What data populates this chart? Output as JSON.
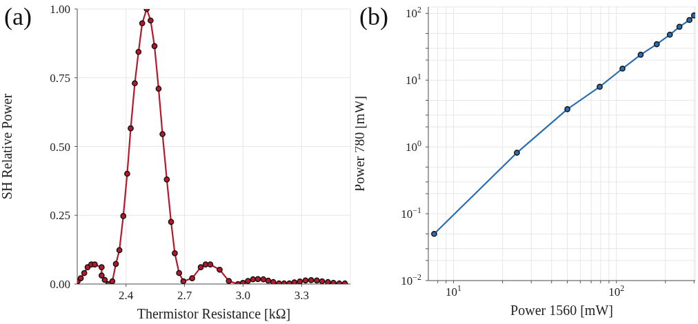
{
  "chart_data": [
    {
      "type": "line",
      "annotations": [
        "(a)"
      ],
      "xlabel": "Thermistor Resistance [kΩ]",
      "ylabel": "SH Relative Power",
      "xlim": [
        2.15,
        3.55
      ],
      "ylim": [
        0,
        1.0
      ],
      "xticks": [
        2.4,
        2.7,
        {
          "value": 3.0,
          "label": "3.0"
        },
        3.3
      ],
      "yticks": [
        {
          "value": 0,
          "label": "0.00"
        },
        0.25,
        {
          "value": 0.5,
          "label": "0.50"
        },
        0.75,
        {
          "value": 1,
          "label": "1.00"
        }
      ],
      "grid": true,
      "marker": "circle",
      "x": [
        2.152,
        2.168,
        2.186,
        2.203,
        2.222,
        2.24,
        2.275,
        2.275,
        2.291,
        2.31,
        2.33,
        2.348,
        2.366,
        2.386,
        2.406,
        2.424,
        2.445,
        2.464,
        2.483,
        2.506,
        2.526,
        2.546,
        2.567,
        2.587,
        2.609,
        2.631,
        2.65,
        2.672,
        2.694,
        2.739,
        2.783,
        2.808,
        2.832,
        2.88,
        2.927,
        2.974,
        2.999,
        3.025,
        3.051,
        3.076,
        3.104,
        3.129,
        3.155,
        3.184,
        3.21,
        3.237,
        3.263,
        3.291,
        3.32,
        3.349,
        3.378,
        3.405,
        3.435,
        3.463,
        3.493,
        3.522
      ],
      "series": [
        {
          "color": "#b5182b",
          "values": [
            0.01,
            0.021,
            0.04,
            0.061,
            0.071,
            0.071,
            0.061,
            0.031,
            0.015,
            0,
            0.01,
            0.073,
            0.123,
            0.247,
            0.401,
            0.566,
            0.73,
            0.844,
            0.948,
            1.0,
            0.958,
            0.865,
            0.71,
            0.545,
            0.38,
            0.226,
            0.112,
            0.04,
            0.01,
            0.021,
            0.061,
            0.071,
            0.071,
            0.052,
            0.011,
            0,
            0.004,
            0.011,
            0.017,
            0.018,
            0.017,
            0.012,
            0.007,
            0.002,
            0.002,
            0.002,
            0.006,
            0.009,
            0.013,
            0.014,
            0.013,
            0.01,
            0.007,
            0.004,
            0.002,
            0.002
          ]
        }
      ]
    },
    {
      "type": "line",
      "annotations": [
        "(b)"
      ],
      "xlabel": "Power 1560 [mW]",
      "ylabel": "Power 780 [mW]",
      "log": "xy",
      "xlim": [
        7,
        305
      ],
      "ylim": [
        0.01,
        125
      ],
      "xticks": [
        {
          "value": 8,
          "label": null
        },
        {
          "value": 9,
          "label": null
        },
        {
          "value": 10,
          "label": "10$^{1}$"
        },
        {
          "value": 20,
          "label": null
        },
        {
          "value": 30,
          "label": null
        },
        {
          "value": 40,
          "label": null
        },
        {
          "value": 50,
          "label": null
        },
        {
          "value": 60,
          "label": null
        },
        {
          "value": 70,
          "label": null
        },
        {
          "value": 80,
          "label": null
        },
        {
          "value": 90,
          "label": null
        },
        {
          "value": 100,
          "label": "10$^{2}$"
        },
        {
          "value": 200,
          "label": null
        },
        {
          "value": 300,
          "label": null
        }
      ],
      "yticks": [
        {
          "value": 0.01,
          "label": "10$^{−2}$"
        },
        {
          "value": 0.02,
          "label": null
        },
        {
          "value": 0.03,
          "label": null
        },
        {
          "value": 0.05,
          "label": null
        },
        {
          "value": 0.1,
          "label": "10$^{−1}$"
        },
        {
          "value": 0.2,
          "label": null
        },
        {
          "value": 0.3,
          "label": null
        },
        {
          "value": 0.5,
          "label": null
        },
        {
          "value": 1,
          "label": "10$^{0}$"
        },
        {
          "value": 2,
          "label": null
        },
        {
          "value": 3,
          "label": null
        },
        {
          "value": 5,
          "label": null
        },
        {
          "value": 10,
          "label": "10$^{1}$"
        },
        {
          "value": 20,
          "label": null
        },
        {
          "value": 30,
          "label": null
        },
        {
          "value": 50,
          "label": null
        },
        {
          "value": 100,
          "label": "10$^{2}$"
        }
      ],
      "grid": true,
      "marker": "circle",
      "x": [
        7.6,
        24.5,
        50,
        79,
        109,
        141,
        177,
        213,
        244,
        281,
        300
      ],
      "series": [
        {
          "color": "#2a6db0",
          "values": [
            0.05,
            0.82,
            3.68,
            7.96,
            14.9,
            24,
            34.6,
            48,
            63,
            79.6,
            93
          ]
        }
      ]
    }
  ]
}
